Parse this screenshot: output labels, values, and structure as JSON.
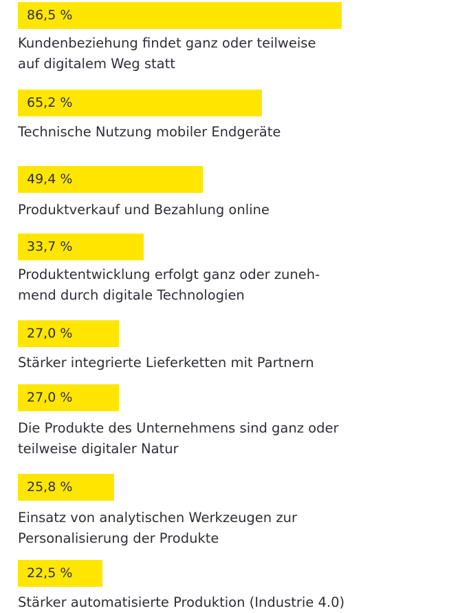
{
  "chart_data": {
    "type": "bar",
    "orientation": "horizontal",
    "bar_color": "#ffe600",
    "xlim": [
      0,
      100
    ],
    "unit": "%",
    "categories": [
      "Kundenbeziehung findet ganz oder teilweise\nauf digitalem Weg statt",
      "Technische Nutzung mobiler Endgeräte",
      "Produktverkauf und Bezahlung online",
      "Produktentwicklung erfolgt ganz oder zuneh-\nmend durch digitale Technologien",
      "Stärker integrierte Lieferketten mit Partnern",
      "Die Produkte des Unternehmens sind ganz oder\nteilweise digitaler Natur",
      "Einsatz von analytischen Werkzeugen zur\nPersonalisierung der Produkte",
      "Stärker automatisierte Produktion (Industrie 4.0)"
    ],
    "values": [
      86.5,
      65.2,
      49.4,
      33.7,
      27.0,
      27.0,
      25.8,
      22.5
    ],
    "value_labels": [
      "86,5 %",
      "65,2 %",
      "49,4 %",
      "33,7 %",
      "27,0 %",
      "27,0 %",
      "25,8 %",
      "22,5 %"
    ]
  }
}
